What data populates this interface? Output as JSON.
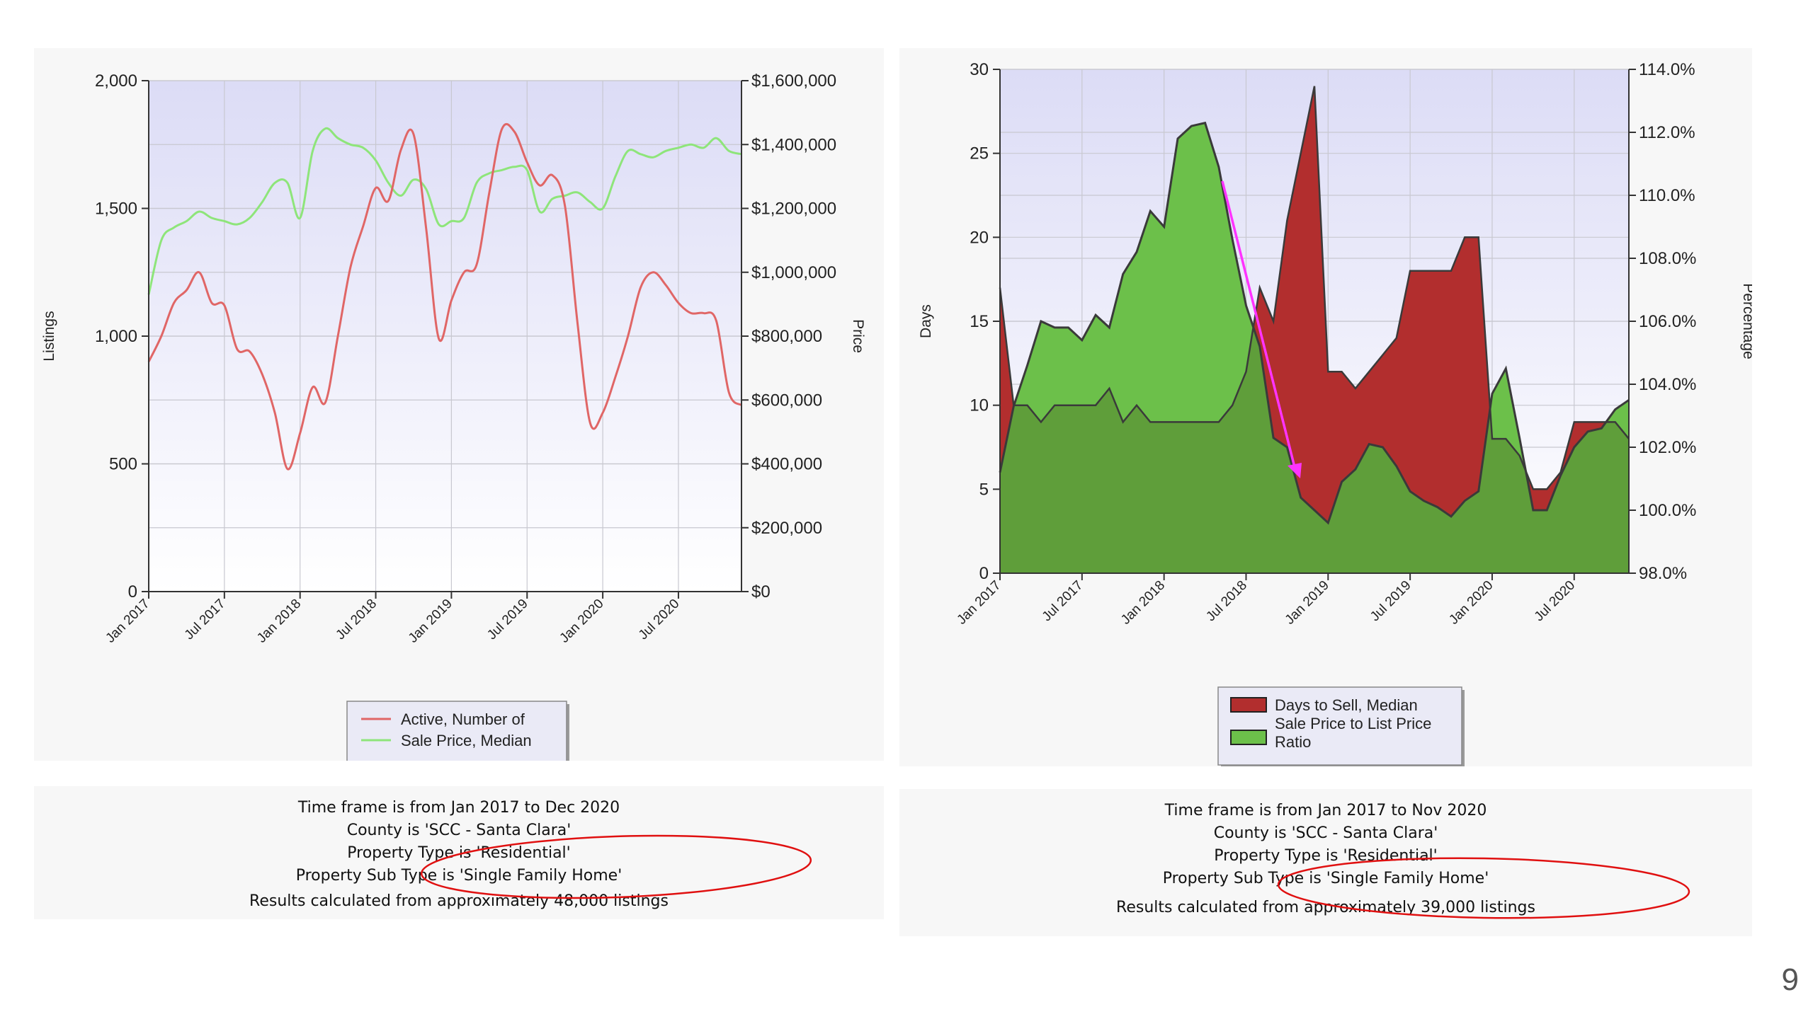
{
  "page_number": "9",
  "colors": {
    "active_line": "#e06666",
    "sale_price_line": "#8ee57a",
    "days_fill": "#b22e2e",
    "ratio_fill": "#6cc04a",
    "ratio_fill_dark": "#5f9e3a",
    "arrow": "#ff33ff",
    "circle": "#e01010"
  },
  "chart_data": [
    {
      "type": "line",
      "x_tick_labels": [
        "Jan 2017",
        "Jul 2017",
        "Jan 2018",
        "Jul 2018",
        "Jan 2019",
        "Jul 2019",
        "Jan 2020",
        "Jul 2020"
      ],
      "ylabel": "Listings",
      "y2label": "Price",
      "ylim": [
        0,
        2000
      ],
      "y2lim": [
        0,
        1600000
      ],
      "y_tick_labels": [
        "0",
        "500",
        "1,000",
        "1,500",
        "2,000"
      ],
      "y2_tick_labels": [
        "$0",
        "$200,000",
        "$400,000",
        "$600,000",
        "$800,000",
        "$1,000,000",
        "$1,200,000",
        "$1,400,000",
        "$1,600,000"
      ],
      "grid": true,
      "legend_position": "bottom",
      "months": [
        "2017-01",
        "2017-02",
        "2017-03",
        "2017-04",
        "2017-05",
        "2017-06",
        "2017-07",
        "2017-08",
        "2017-09",
        "2017-10",
        "2017-11",
        "2017-12",
        "2018-01",
        "2018-02",
        "2018-03",
        "2018-04",
        "2018-05",
        "2018-06",
        "2018-07",
        "2018-08",
        "2018-09",
        "2018-10",
        "2018-11",
        "2018-12",
        "2019-01",
        "2019-02",
        "2019-03",
        "2019-04",
        "2019-05",
        "2019-06",
        "2019-07",
        "2019-08",
        "2019-09",
        "2019-10",
        "2019-11",
        "2019-12",
        "2020-01",
        "2020-02",
        "2020-03",
        "2020-04",
        "2020-05",
        "2020-06",
        "2020-07",
        "2020-08",
        "2020-09",
        "2020-10",
        "2020-11",
        "2020-12"
      ],
      "series": [
        {
          "name": "Active, Number of",
          "axis": "left",
          "values": [
            900,
            1000,
            1130,
            1180,
            1250,
            1130,
            1120,
            950,
            940,
            850,
            700,
            480,
            620,
            800,
            740,
            1000,
            1270,
            1430,
            1580,
            1530,
            1730,
            1790,
            1420,
            990,
            1140,
            1250,
            1280,
            1560,
            1810,
            1800,
            1680,
            1590,
            1630,
            1510,
            1050,
            660,
            700,
            840,
            1000,
            1190,
            1250,
            1200,
            1130,
            1090,
            1090,
            1060,
            780,
            730
          ]
        },
        {
          "name": "Sale Price, Median",
          "axis": "right",
          "values": [
            930000,
            1100000,
            1140000,
            1160000,
            1190000,
            1170000,
            1160000,
            1150000,
            1170000,
            1220000,
            1280000,
            1280000,
            1170000,
            1380000,
            1450000,
            1420000,
            1400000,
            1390000,
            1350000,
            1280000,
            1240000,
            1290000,
            1260000,
            1150000,
            1160000,
            1170000,
            1280000,
            1310000,
            1320000,
            1330000,
            1320000,
            1190000,
            1230000,
            1240000,
            1250000,
            1220000,
            1200000,
            1300000,
            1380000,
            1370000,
            1360000,
            1380000,
            1390000,
            1400000,
            1390000,
            1420000,
            1380000,
            1370000
          ]
        }
      ],
      "legend": [
        "Active, Number of",
        "Sale Price, Median"
      ]
    },
    {
      "type": "area",
      "x_tick_labels": [
        "Jan 2017",
        "Jul 2017",
        "Jan 2018",
        "Jul 2018",
        "Jan 2019",
        "Jul 2019",
        "Jan 2020",
        "Jul 2020"
      ],
      "ylabel": "Days",
      "y2label": "Percentage",
      "ylim": [
        0,
        30
      ],
      "y2lim": [
        98.0,
        114.0
      ],
      "y_tick_labels": [
        "0",
        "5",
        "10",
        "15",
        "20",
        "25",
        "30"
      ],
      "y2_tick_labels": [
        "98.0%",
        "100.0%",
        "102.0%",
        "104.0%",
        "106.0%",
        "108.0%",
        "110.0%",
        "112.0%",
        "114.0%"
      ],
      "grid": true,
      "legend_position": "bottom",
      "months": [
        "2017-01",
        "2017-02",
        "2017-03",
        "2017-04",
        "2017-05",
        "2017-06",
        "2017-07",
        "2017-08",
        "2017-09",
        "2017-10",
        "2017-11",
        "2017-12",
        "2018-01",
        "2018-02",
        "2018-03",
        "2018-04",
        "2018-05",
        "2018-06",
        "2018-07",
        "2018-08",
        "2018-09",
        "2018-10",
        "2018-11",
        "2018-12",
        "2019-01",
        "2019-02",
        "2019-03",
        "2019-04",
        "2019-05",
        "2019-06",
        "2019-07",
        "2019-08",
        "2019-09",
        "2019-10",
        "2019-11",
        "2019-12",
        "2020-01",
        "2020-02",
        "2020-03",
        "2020-04",
        "2020-05",
        "2020-06",
        "2020-07",
        "2020-08",
        "2020-09",
        "2020-10",
        "2020-11"
      ],
      "series": [
        {
          "name": "Days to Sell, Median",
          "axis": "left",
          "values": [
            17,
            10,
            10,
            9,
            10,
            10,
            10,
            10,
            11,
            9,
            10,
            9,
            9,
            9,
            9,
            9,
            9,
            10,
            12,
            17,
            15,
            21,
            25,
            29,
            12,
            12,
            11,
            12,
            13,
            14,
            18,
            18,
            18,
            18,
            20,
            20,
            8,
            8,
            7,
            5,
            5,
            6,
            9,
            9,
            9,
            9,
            8
          ]
        },
        {
          "name": "Sale Price to List Price Ratio",
          "axis": "right",
          "values": [
            101.2,
            103.3,
            104.6,
            106.0,
            105.8,
            105.8,
            105.4,
            106.2,
            105.8,
            107.5,
            108.2,
            109.5,
            109.0,
            111.8,
            112.2,
            112.3,
            110.9,
            108.6,
            106.5,
            105.2,
            102.3,
            102.0,
            100.4,
            100.0,
            99.6,
            100.9,
            101.3,
            102.1,
            102.0,
            101.4,
            100.6,
            100.3,
            100.1,
            99.8,
            100.3,
            100.6,
            103.7,
            104.5,
            102.3,
            100.0,
            100.0,
            101.1,
            102.0,
            102.5,
            102.6,
            103.2,
            103.5
          ]
        }
      ],
      "legend": [
        "Days to Sell, Median",
        "Sale Price to List Price Ratio"
      ]
    }
  ],
  "legend1": {
    "item1": "Active, Number of",
    "item2": "Sale Price, Median"
  },
  "legend2": {
    "item1": "Days to Sell, Median",
    "item2_line1": "Sale Price to List Price",
    "item2_line2": "Ratio"
  },
  "info1": {
    "line1": "Time frame is from Jan 2017 to Dec 2020",
    "line2": "County is 'SCC - Santa Clara'",
    "line3": "Property Type is 'Residential'",
    "line4": "Property Sub Type is 'Single Family Home'",
    "line5": "Results calculated from approximately 48,000 listings"
  },
  "info2": {
    "line1": "Time frame is from Jan 2017 to Nov 2020",
    "line2": "County is 'SCC - Santa Clara'",
    "line3": "Property Type is 'Residential'",
    "line4": "Property Sub Type is 'Single Family Home'",
    "line5": "Results calculated from approximately 39,000 listings"
  }
}
